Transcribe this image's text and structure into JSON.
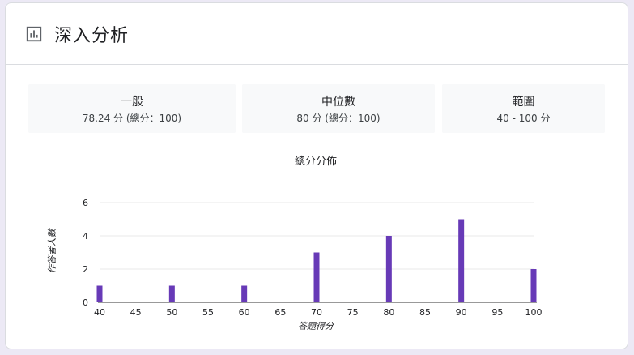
{
  "header": {
    "title": "深入分析",
    "icon": "bar-chart-icon"
  },
  "stats": [
    {
      "title": "一般",
      "value": "78.24 分 (總分：100)"
    },
    {
      "title": "中位數",
      "value": "80 分 (總分：100)"
    },
    {
      "title": "範圍",
      "value": "40 - 100 分"
    }
  ],
  "colors": {
    "bar": "#673ab7",
    "grid": "#e8e8e8",
    "axis": "#333333",
    "stat_bg": "#f8f9fa"
  },
  "chart_data": {
    "type": "bar",
    "title": "總分分佈",
    "xlabel": "答題得分",
    "ylabel": "作答者人數",
    "x_ticks": [
      40,
      45,
      50,
      55,
      60,
      65,
      70,
      75,
      80,
      85,
      90,
      95,
      100
    ],
    "y_ticks": [
      0,
      2,
      4,
      6
    ],
    "xlim": [
      40,
      100
    ],
    "ylim": [
      0,
      6
    ],
    "grid": true,
    "legend": "none",
    "x": [
      40,
      50,
      60,
      70,
      80,
      90,
      100
    ],
    "values": [
      1,
      1,
      1,
      3,
      4,
      5,
      2
    ]
  }
}
